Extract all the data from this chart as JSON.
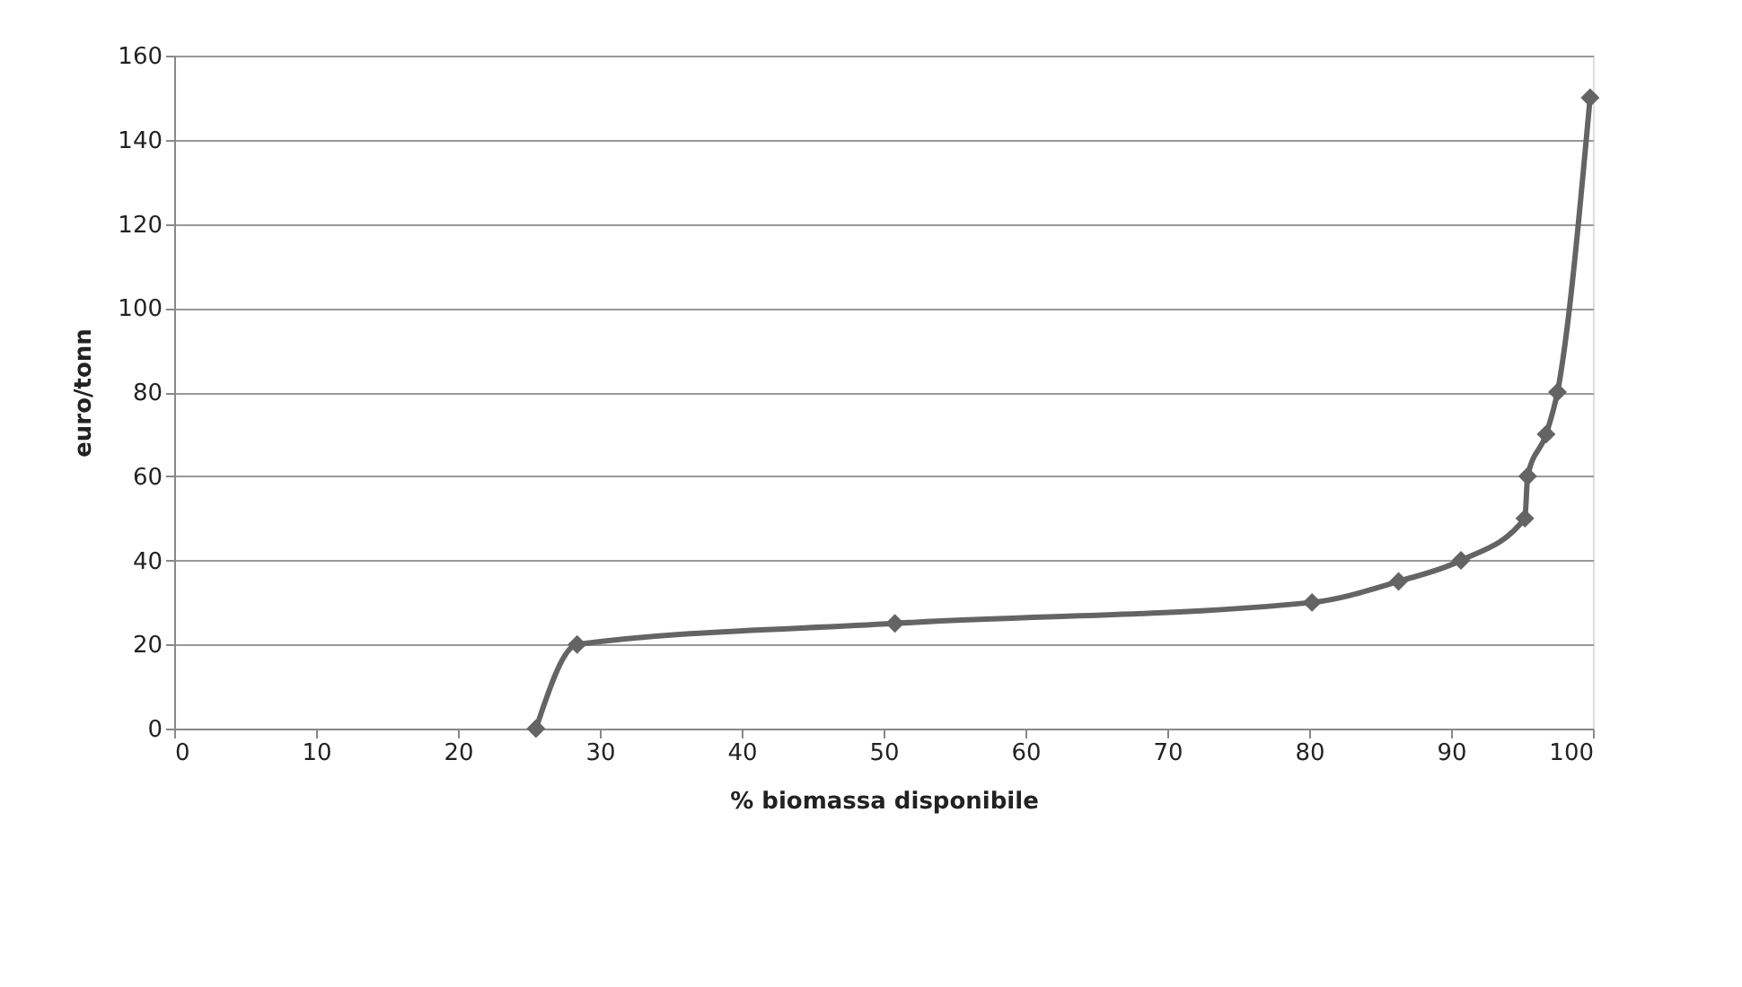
{
  "chart_data": {
    "type": "line",
    "xlabel": "% biomassa disponibile",
    "ylabel": "euro/tonn",
    "x": [
      25.5,
      28.4,
      50.8,
      80.2,
      86.3,
      90.7,
      95.2,
      95.4,
      96.7,
      97.5,
      99.8
    ],
    "series": [
      {
        "color": "#646464",
        "values": [
          0,
          20,
          25,
          30,
          35,
          40,
          50,
          60,
          70,
          80,
          150
        ]
      }
    ],
    "xlim": [
      0,
      100
    ],
    "xticks": [
      0,
      10,
      20,
      30,
      40,
      50,
      60,
      70,
      80,
      90,
      100
    ],
    "ylim": [
      0,
      160
    ],
    "yticks": [
      0,
      20,
      40,
      60,
      80,
      100,
      120,
      140,
      160
    ],
    "grid": "y",
    "marker": "diamond",
    "line_style": "solid"
  }
}
